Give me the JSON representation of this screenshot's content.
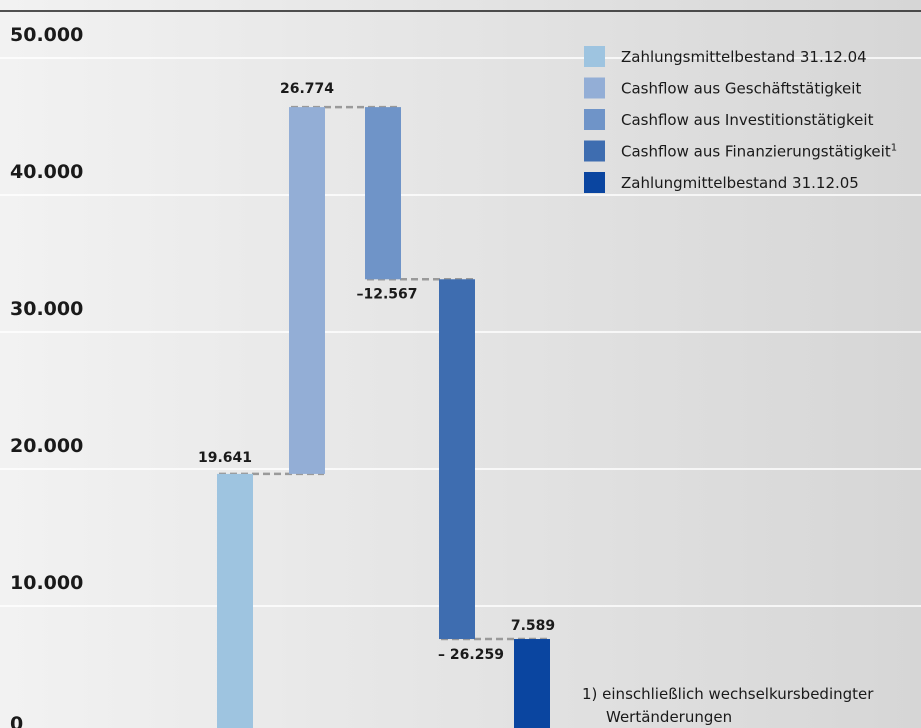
{
  "chart_data": {
    "type": "bar",
    "subtype": "waterfall",
    "ylim": [
      0,
      50000
    ],
    "yticks": [
      "0",
      "10.000",
      "20.000",
      "30.000",
      "40.000",
      "50.000"
    ],
    "ytick_values": [
      0,
      10000,
      20000,
      30000,
      40000,
      50000
    ],
    "grid": true,
    "legend_position": "top-right",
    "steps": [
      {
        "name": "Zahlungsmittelbestand 31.12.04",
        "label": "19.641",
        "start": 0,
        "end": 19641,
        "color": "#9ec4e0"
      },
      {
        "name": "Cashflow aus Geschäftstätigkeit",
        "label": "26.774",
        "start": 19641,
        "end": 46415,
        "color": "#93aed6"
      },
      {
        "name": "Cashflow aus Investitionstätigkeit",
        "label": "–12.567",
        "start": 46415,
        "end": 33848,
        "color": "#6f94c8"
      },
      {
        "name": "Cashflow aus Finanzierungstätigkeit",
        "name_sup": "1",
        "label": "– 26.259",
        "start": 33848,
        "end": 7589,
        "color": "#3e6db0"
      },
      {
        "name": "Zahlungmittelbestand 31.12.05",
        "label": "7.589",
        "start": 0,
        "end": 7589,
        "color": "#0a45a0"
      }
    ],
    "footnote": {
      "marker": "1)",
      "lines": [
        "einschließlich wechselkursbedingter",
        "Wertänderungen"
      ]
    }
  }
}
